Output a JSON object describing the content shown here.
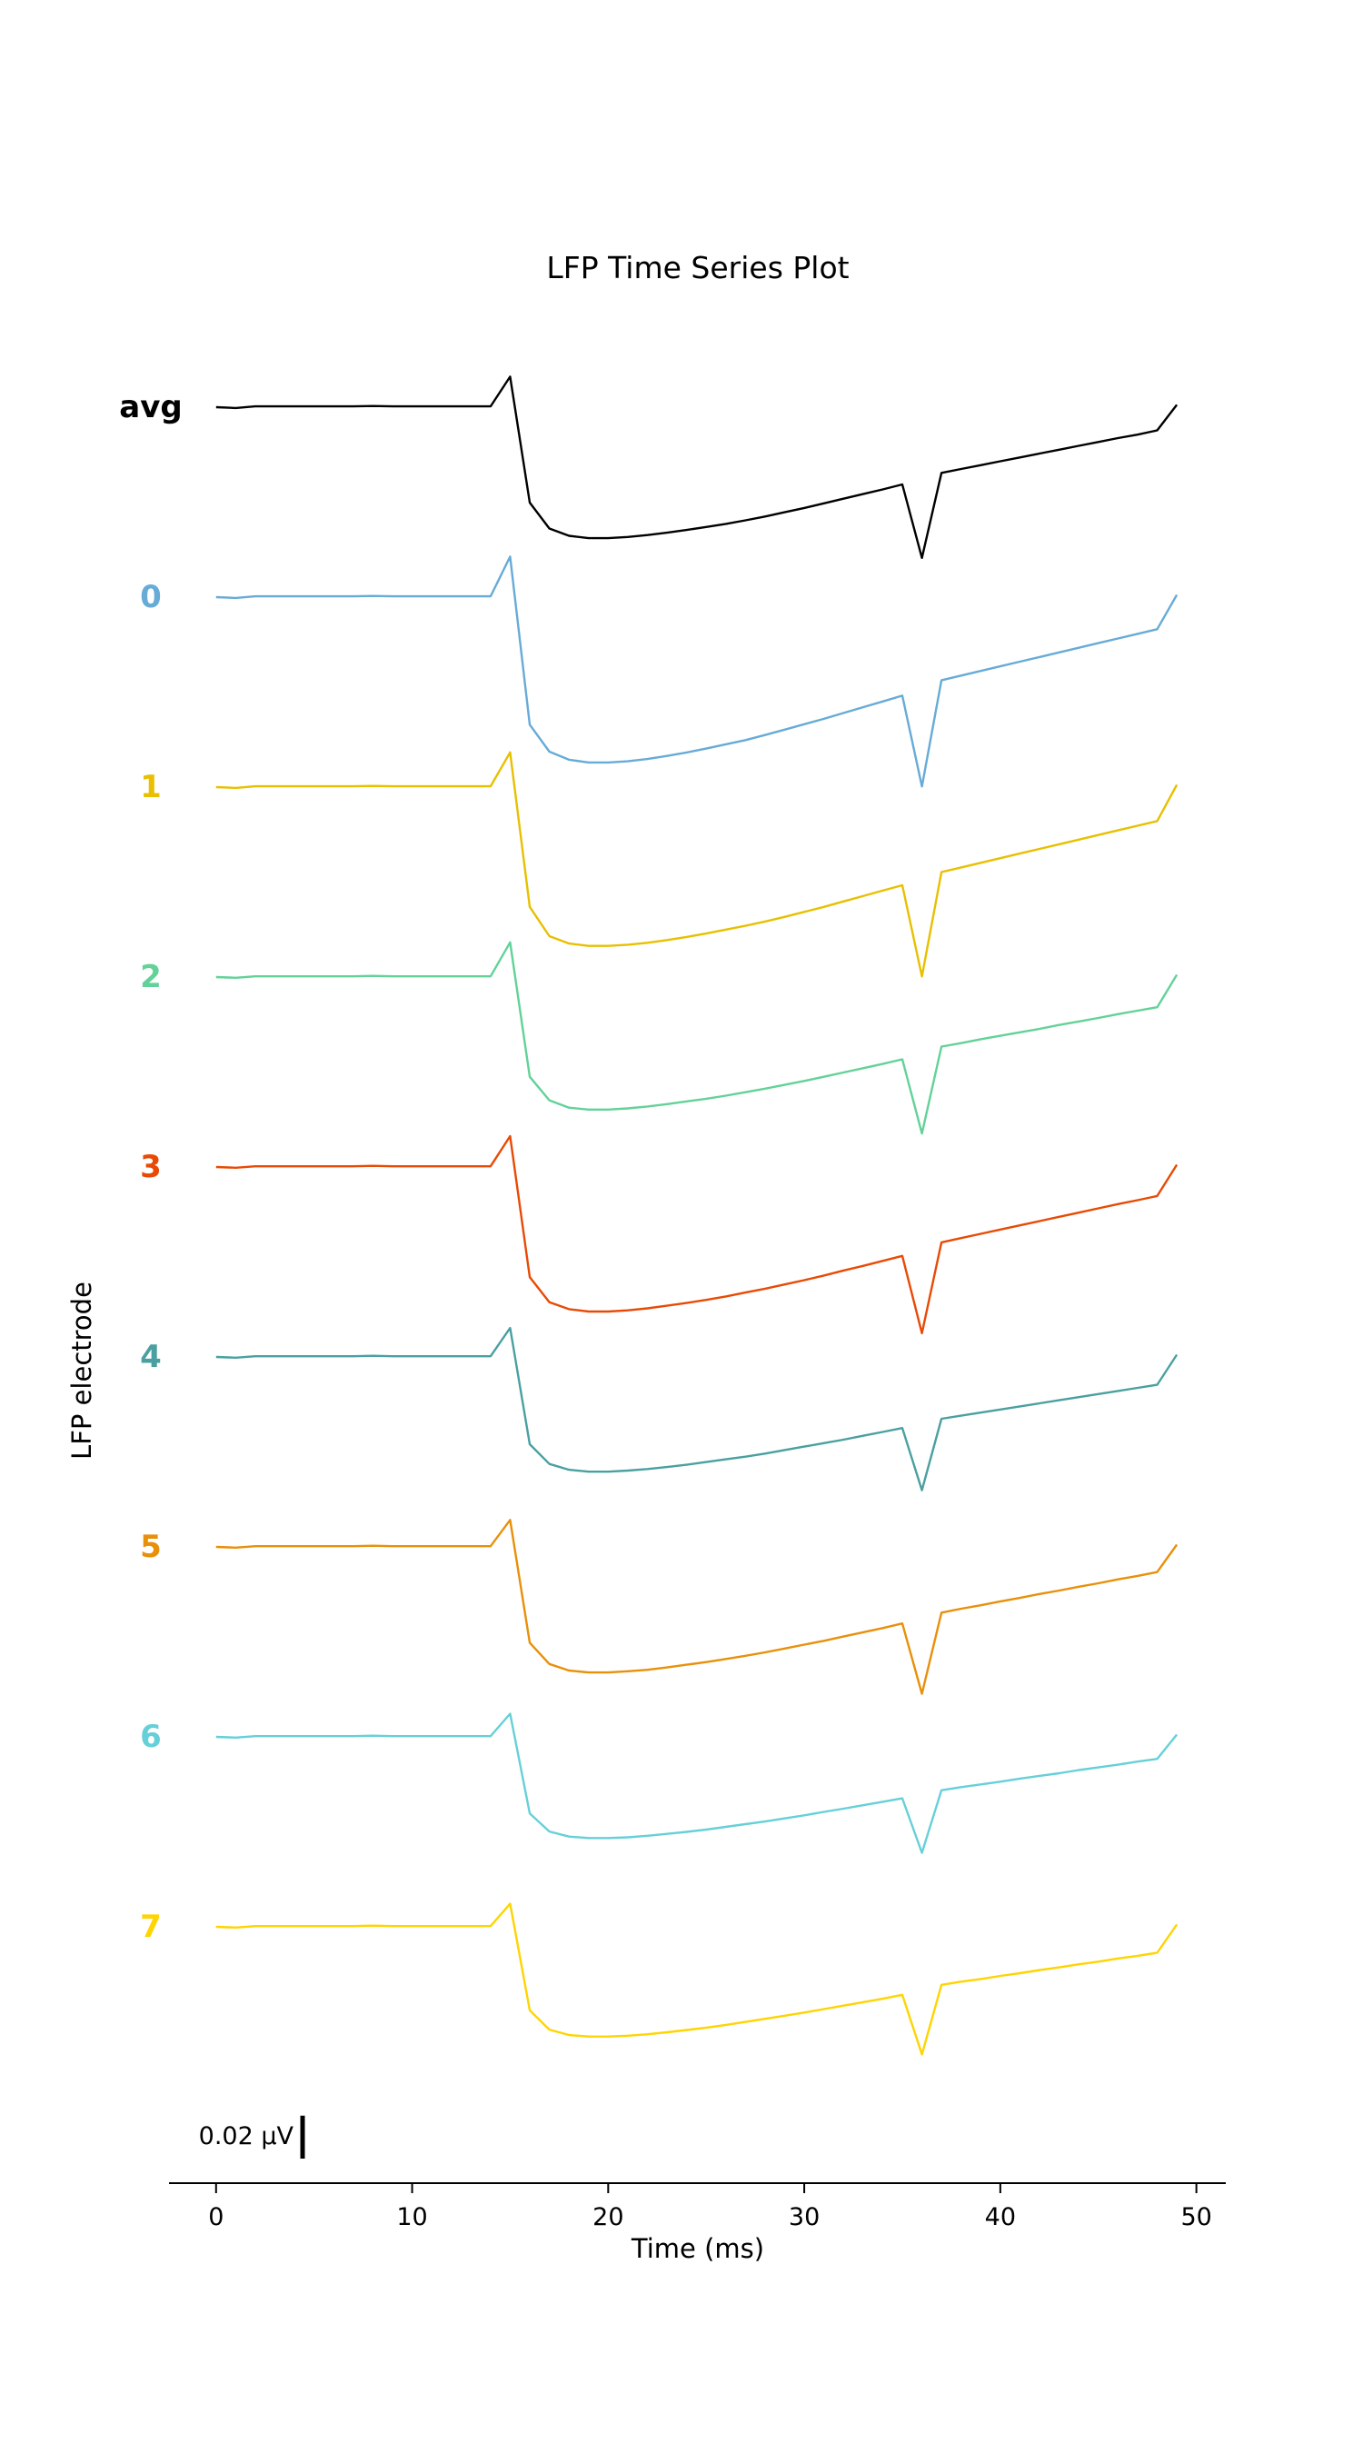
{
  "chart_data": {
    "type": "line",
    "title": "LFP Time Series Plot",
    "xlabel": "Time (ms)",
    "ylabel": "LFP electrode",
    "xlim": [
      -2.4,
      51.5
    ],
    "xticks": [
      0,
      10,
      20,
      30,
      40,
      50
    ],
    "x": [
      0,
      1,
      2,
      3,
      4,
      5,
      6,
      7,
      8,
      9,
      10,
      11,
      12,
      13,
      14,
      15,
      16,
      17,
      18,
      19,
      20,
      21,
      22,
      23,
      24,
      25,
      26,
      27,
      28,
      29,
      30,
      31,
      32,
      33,
      34,
      35,
      36,
      37,
      38,
      39,
      40,
      41,
      42,
      43,
      44,
      45,
      46,
      47,
      48,
      49
    ],
    "scale_bar": {
      "label": "0.02 μV",
      "value": 0.02,
      "unit": "μV"
    },
    "grid": false,
    "series": [
      {
        "name": "avg",
        "color": "#000000",
        "values": [
          0,
          -0.0002,
          0.0002,
          0.0002,
          0.0002,
          0.0002,
          0.0002,
          0.0002,
          0.0003,
          0.0002,
          0.0002,
          0.0002,
          0.0002,
          0.0002,
          0.0002,
          0.0079,
          -0.0247,
          -0.0314,
          -0.0333,
          -0.0339,
          -0.0339,
          -0.0336,
          -0.0331,
          -0.0325,
          -0.0318,
          -0.031,
          -0.0302,
          -0.0293,
          -0.0283,
          -0.0272,
          -0.0261,
          -0.0249,
          -0.0237,
          -0.0225,
          -0.0213,
          -0.02,
          -0.039,
          -0.017,
          -0.016,
          -0.015,
          -0.014,
          -0.013,
          -0.012,
          -0.011,
          -0.01,
          -0.009,
          -0.008,
          -0.0071,
          -0.006,
          0.0006
        ]
      },
      {
        "name": "0",
        "color": "#67abd7",
        "values": [
          0,
          -0.0002,
          0.0002,
          0.0002,
          0.0002,
          0.0002,
          0.0002,
          0.0002,
          0.0003,
          0.0002,
          0.0002,
          0.0002,
          0.0002,
          0.0002,
          0.0002,
          0.0105,
          -0.033,
          -0.04,
          -0.0421,
          -0.0428,
          -0.0428,
          -0.0425,
          -0.0419,
          -0.0411,
          -0.0402,
          -0.0392,
          -0.0381,
          -0.037,
          -0.0357,
          -0.0343,
          -0.0329,
          -0.0315,
          -0.03,
          -0.0285,
          -0.027,
          -0.0255,
          -0.049,
          -0.0215,
          -0.0203,
          -0.0191,
          -0.0179,
          -0.0167,
          -0.0155,
          -0.0143,
          -0.0131,
          -0.0119,
          -0.0107,
          -0.0095,
          -0.0083,
          0.0006
        ]
      },
      {
        "name": "1",
        "color": "#e8c000",
        "values": [
          0,
          -0.0002,
          0.0002,
          0.0002,
          0.0002,
          0.0002,
          0.0002,
          0.0002,
          0.0003,
          0.0002,
          0.0002,
          0.0002,
          0.0002,
          0.0002,
          0.0002,
          0.009,
          -0.031,
          -0.0386,
          -0.0405,
          -0.0411,
          -0.0411,
          -0.0408,
          -0.0403,
          -0.0396,
          -0.0388,
          -0.0379,
          -0.0369,
          -0.0359,
          -0.0348,
          -0.0336,
          -0.0323,
          -0.031,
          -0.0296,
          -0.0282,
          -0.0268,
          -0.0254,
          -0.049,
          -0.022,
          -0.0208,
          -0.0196,
          -0.0184,
          -0.0172,
          -0.016,
          -0.0148,
          -0.0136,
          -0.0124,
          -0.0112,
          -0.01,
          -0.0088,
          0.0006
        ]
      },
      {
        "name": "2",
        "color": "#62d298",
        "values": [
          0,
          -0.0002,
          0.0002,
          0.0002,
          0.0002,
          0.0002,
          0.0002,
          0.0002,
          0.0003,
          0.0002,
          0.0002,
          0.0002,
          0.0002,
          0.0002,
          0.0002,
          0.009,
          -0.0258,
          -0.0319,
          -0.0338,
          -0.0343,
          -0.0343,
          -0.034,
          -0.0335,
          -0.0329,
          -0.0322,
          -0.0315,
          -0.0307,
          -0.0298,
          -0.0289,
          -0.0279,
          -0.0269,
          -0.0258,
          -0.0247,
          -0.0236,
          -0.0225,
          -0.0213,
          -0.0405,
          -0.018,
          -0.0171,
          -0.0161,
          -0.0152,
          -0.0143,
          -0.0134,
          -0.0124,
          -0.0115,
          -0.0106,
          -0.0096,
          -0.0087,
          -0.0078,
          0.0006
        ]
      },
      {
        "name": "3",
        "color": "#e84a05",
        "values": [
          0,
          -0.0002,
          0.0002,
          0.0002,
          0.0002,
          0.0002,
          0.0002,
          0.0002,
          0.0003,
          0.0002,
          0.0002,
          0.0002,
          0.0002,
          0.0002,
          0.0002,
          0.008,
          -0.0285,
          -0.035,
          -0.0368,
          -0.0374,
          -0.0374,
          -0.0371,
          -0.0366,
          -0.0359,
          -0.0352,
          -0.0344,
          -0.0335,
          -0.0325,
          -0.0315,
          -0.0304,
          -0.0293,
          -0.0281,
          -0.0268,
          -0.0256,
          -0.0243,
          -0.023,
          -0.043,
          -0.0195,
          -0.0184,
          -0.0173,
          -0.0162,
          -0.0151,
          -0.014,
          -0.0129,
          -0.0118,
          -0.0107,
          -0.0096,
          -0.0086,
          -0.0075,
          0.0006
        ]
      },
      {
        "name": "4",
        "color": "#4aa0a0",
        "values": [
          0,
          -0.0002,
          0.0002,
          0.0002,
          0.0002,
          0.0002,
          0.0002,
          0.0002,
          0.0003,
          0.0002,
          0.0002,
          0.0002,
          0.0002,
          0.0002,
          0.0002,
          0.0075,
          -0.0226,
          -0.0277,
          -0.0292,
          -0.0297,
          -0.0297,
          -0.0294,
          -0.029,
          -0.0285,
          -0.0279,
          -0.0272,
          -0.0265,
          -0.0258,
          -0.025,
          -0.0241,
          -0.0232,
          -0.0223,
          -0.0214,
          -0.0204,
          -0.0194,
          -0.0184,
          -0.0345,
          -0.016,
          -0.0152,
          -0.0144,
          -0.0136,
          -0.0128,
          -0.012,
          -0.0112,
          -0.0104,
          -0.0096,
          -0.0088,
          -0.008,
          -0.0072,
          0.0006
        ]
      },
      {
        "name": "5",
        "color": "#e8900a",
        "values": [
          0,
          -0.0002,
          0.0002,
          0.0002,
          0.0002,
          0.0002,
          0.0002,
          0.0002,
          0.0003,
          0.0002,
          0.0002,
          0.0002,
          0.0002,
          0.0002,
          0.0002,
          0.007,
          -0.0248,
          -0.0303,
          -0.032,
          -0.0325,
          -0.0325,
          -0.0322,
          -0.0318,
          -0.0312,
          -0.0305,
          -0.0298,
          -0.029,
          -0.0282,
          -0.0273,
          -0.0263,
          -0.0253,
          -0.0243,
          -0.0232,
          -0.0221,
          -0.021,
          -0.0198,
          -0.038,
          -0.017,
          -0.016,
          -0.0151,
          -0.0141,
          -0.0132,
          -0.0122,
          -0.0113,
          -0.0103,
          -0.0094,
          -0.0084,
          -0.0075,
          -0.0065,
          0.0006
        ]
      },
      {
        "name": "6",
        "color": "#66d0d8",
        "values": [
          0,
          -0.0002,
          0.0002,
          0.0002,
          0.0002,
          0.0002,
          0.0002,
          0.0002,
          0.0003,
          0.0002,
          0.0002,
          0.0002,
          0.0002,
          0.0002,
          0.0002,
          0.006,
          -0.0198,
          -0.0245,
          -0.0258,
          -0.0262,
          -0.0262,
          -0.026,
          -0.0256,
          -0.0251,
          -0.0246,
          -0.024,
          -0.0233,
          -0.0226,
          -0.0219,
          -0.0211,
          -0.0203,
          -0.0194,
          -0.0186,
          -0.0177,
          -0.0168,
          -0.0159,
          -0.03,
          -0.0138,
          -0.013,
          -0.0123,
          -0.0116,
          -0.0108,
          -0.0101,
          -0.0094,
          -0.0086,
          -0.0079,
          -0.0072,
          -0.0064,
          -0.0057,
          0.0006
        ]
      },
      {
        "name": "7",
        "color": "#ffd400",
        "values": [
          0,
          -0.0002,
          0.0002,
          0.0002,
          0.0002,
          0.0002,
          0.0002,
          0.0002,
          0.0003,
          0.0002,
          0.0002,
          0.0002,
          0.0002,
          0.0002,
          0.0002,
          0.006,
          -0.0216,
          -0.0266,
          -0.028,
          -0.0284,
          -0.0284,
          -0.0282,
          -0.0278,
          -0.0273,
          -0.0267,
          -0.0261,
          -0.0254,
          -0.0246,
          -0.0238,
          -0.023,
          -0.0222,
          -0.0213,
          -0.0204,
          -0.0195,
          -0.0186,
          -0.0176,
          -0.033,
          -0.015,
          -0.0142,
          -0.0135,
          -0.0127,
          -0.012,
          -0.0112,
          -0.0105,
          -0.0097,
          -0.009,
          -0.0082,
          -0.0075,
          -0.0067,
          0.0006
        ]
      }
    ]
  }
}
